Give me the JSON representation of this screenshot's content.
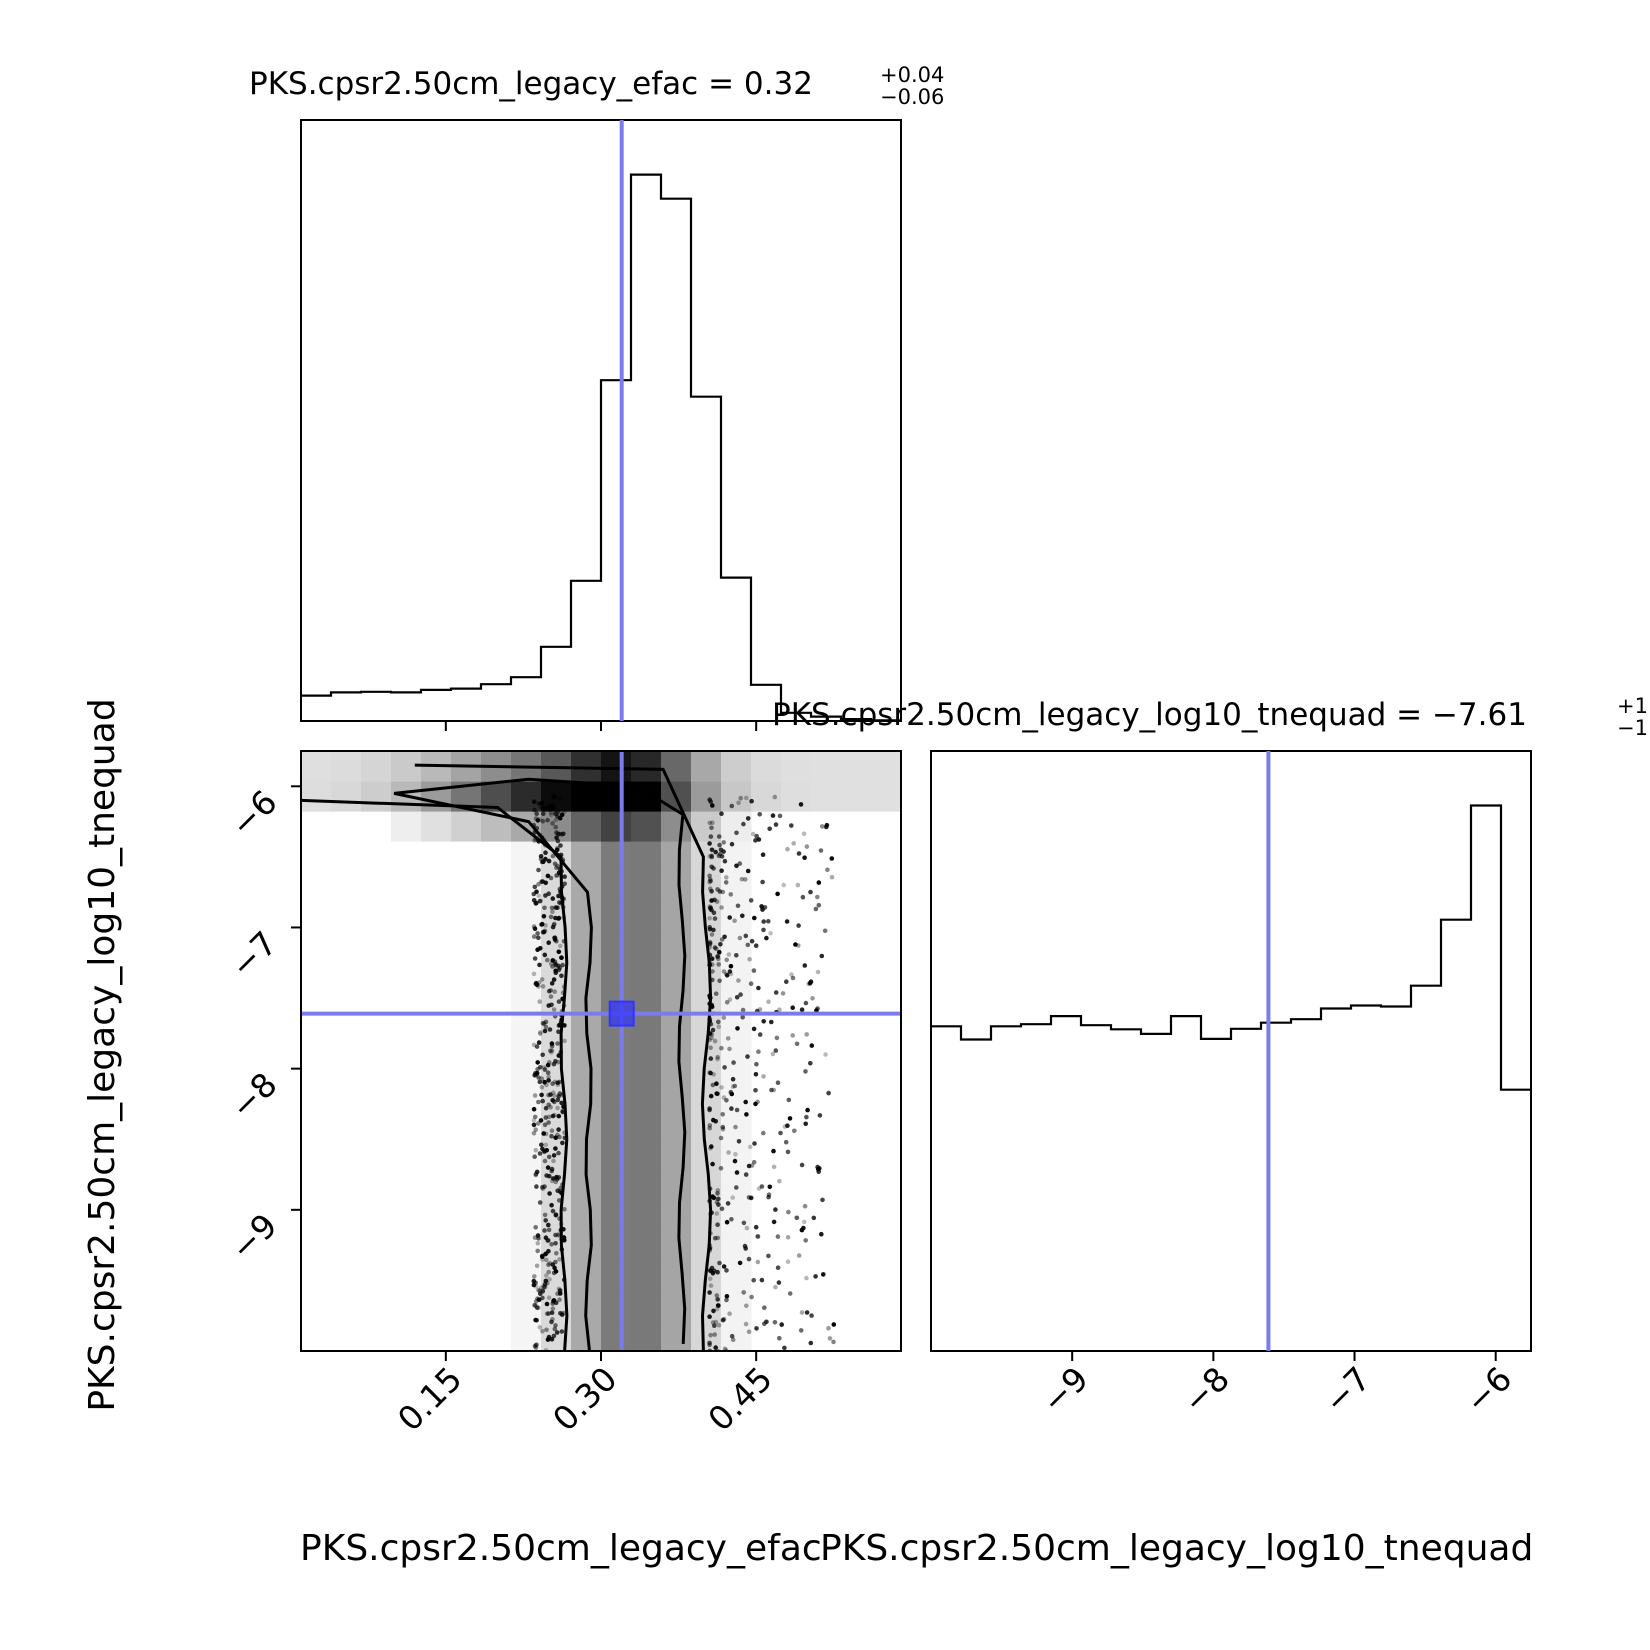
{
  "chart_data": [
    {
      "type": "histogram",
      "panel": "top-left",
      "title": "PKS.cpsr2.50cm_legacy_efac = 0.32",
      "title_base": "PKS.cpsr2.50cm_legacy_efac = 0.32",
      "title_sup": "+0.04",
      "title_sub": "−0.06",
      "xlim": [
        0.01,
        0.59
      ],
      "bin_edges": [
        0.01,
        0.039,
        0.068,
        0.097,
        0.126,
        0.155,
        0.184,
        0.213,
        0.242,
        0.271,
        0.3,
        0.329,
        0.358,
        0.387,
        0.416,
        0.445,
        0.474,
        0.503,
        0.532,
        0.561,
        0.59
      ],
      "counts": [
        40,
        45,
        46,
        45,
        49,
        51,
        58,
        69,
        117,
        221,
        537,
        861,
        823,
        511,
        226,
        57,
        13,
        7,
        3,
        1
      ],
      "truth": 0.32
    },
    {
      "type": "heatmap",
      "panel": "bottom-left",
      "xlabel": "PKS.cpsr2.50cm_legacy_efac",
      "ylabel": "PKS.cpsr2.50cm_legacy_log10_tnequad",
      "xlim": [
        0.01,
        0.59
      ],
      "ylim": [
        -10.0,
        -5.75
      ],
      "x_ticks": [
        0.15,
        0.3,
        0.45
      ],
      "x_tick_labels": [
        "0.15",
        "0.30",
        "0.45"
      ],
      "y_ticks": [
        -6,
        -7,
        -8,
        -9
      ],
      "y_tick_labels": [
        "−6",
        "−7",
        "−8",
        "−9"
      ],
      "truth": {
        "x": 0.32,
        "y": -7.61
      }
    },
    {
      "type": "histogram",
      "panel": "bottom-right",
      "title": "PKS.cpsr2.50cm_legacy_log10_tnequad = −7.61",
      "title_base": "PKS.cpsr2.50cm_legacy_log10_tnequad = −7.61",
      "title_sup": "+1",
      "title_sub": "−1",
      "xlabel": "PKS.cpsr2.50cm_legacy_log10_tnequad",
      "xlim": [
        -10.0,
        -5.75
      ],
      "x_ticks": [
        -9,
        -8,
        -7,
        -6
      ],
      "x_tick_labels": [
        "−9",
        "−8",
        "−7",
        "−6"
      ],
      "bin_edges": [
        -10.0,
        -9.7875,
        -9.575,
        -9.3625,
        -9.15,
        -8.9375,
        -8.725,
        -8.5125,
        -8.3,
        -8.0875,
        -7.875,
        -7.6625,
        -7.45,
        -7.2375,
        -7.025,
        -6.8125,
        -6.6,
        -6.3875,
        -6.175,
        -5.9625,
        -5.75
      ],
      "counts": [
        640,
        614,
        640,
        644,
        660,
        642,
        634,
        625,
        660,
        615,
        635,
        647,
        654,
        675,
        681,
        679,
        720,
        850,
        1075,
        515
      ],
      "truth": -7.61
    }
  ],
  "colors": {
    "truth_line": "#7b7bee",
    "truth_marker": "#3333ff",
    "step": "#000000"
  }
}
